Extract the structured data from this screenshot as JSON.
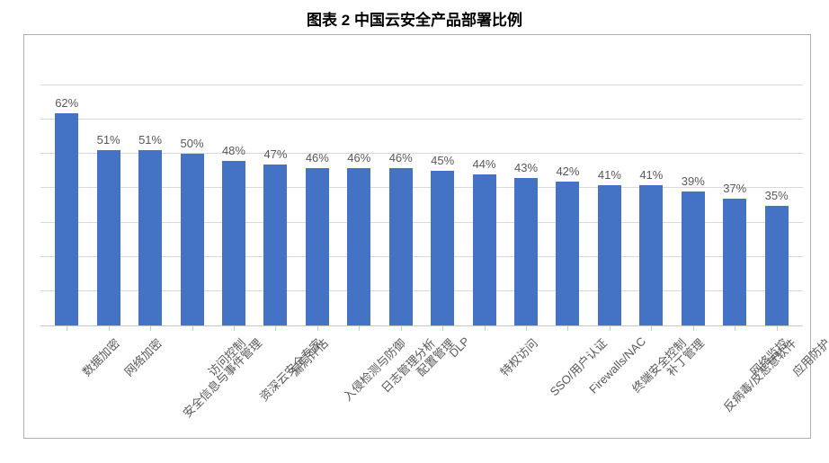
{
  "chart": {
    "type": "bar",
    "title": "图表 2 中国云安全产品部署比例",
    "title_fontsize": 17,
    "title_color": "#000000",
    "categories": [
      "数据加密",
      "网络加密",
      "安全信息与事件管理",
      "访问控制",
      "资深云安全专家",
      "漏洞评估",
      "入侵检测与防御",
      "日志管理分析",
      "配置管理",
      "DLP",
      "特权访问",
      "SSO/用户认证",
      "Firewalls/NAC",
      "终端安全控制",
      "补丁管理",
      "反病毒/反恶意软件",
      "网络监控",
      "应用防护"
    ],
    "values": [
      62,
      51,
      51,
      50,
      48,
      47,
      46,
      46,
      46,
      45,
      44,
      43,
      42,
      41,
      41,
      39,
      37,
      35
    ],
    "value_labels": [
      "62%",
      "51%",
      "51%",
      "50%",
      "48%",
      "47%",
      "46%",
      "46%",
      "46%",
      "45%",
      "44%",
      "43%",
      "42%",
      "41%",
      "41%",
      "39%",
      "37%",
      "35%"
    ],
    "bar_color": "#4472c4",
    "background_color": "#ffffff",
    "border_color": "#b0b0b0",
    "grid_color": "#d9d9d9",
    "axis_color": "#c8c8c8",
    "label_color": "#595959",
    "label_fontsize": 13,
    "xlabel_fontsize": 13,
    "xlabel_rotation": -45,
    "ylim": [
      0,
      70
    ],
    "ytick_step": 10,
    "bar_width_ratio": 0.56
  }
}
